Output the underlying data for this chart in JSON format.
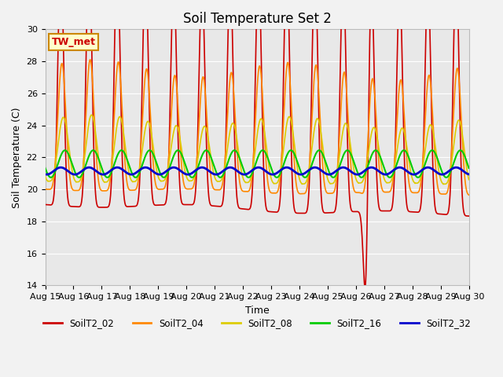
{
  "title": "Soil Temperature Set 2",
  "xlabel": "Time",
  "ylabel": "Soil Temperature (C)",
  "ylim": [
    14,
    30
  ],
  "x_tick_labels": [
    "Aug 15",
    "Aug 16",
    "Aug 17",
    "Aug 18",
    "Aug 19",
    "Aug 20",
    "Aug 21",
    "Aug 22",
    "Aug 23",
    "Aug 24",
    "Aug 25",
    "Aug 26",
    "Aug 27",
    "Aug 28",
    "Aug 29",
    "Aug 30"
  ],
  "series_colors": {
    "SoilT2_02": "#cc0000",
    "SoilT2_04": "#ff8800",
    "SoilT2_08": "#ddcc00",
    "SoilT2_16": "#00cc00",
    "SoilT2_32": "#0000cc"
  },
  "legend_label": "TW_met",
  "legend_bg": "#ffffcc",
  "legend_border": "#cc8800",
  "plot_bg": "#e8e8e8",
  "fig_bg": "#f2f2f2",
  "grid_color": "#ffffff",
  "title_fontsize": 12,
  "axis_label_fontsize": 9,
  "tick_fontsize": 8
}
